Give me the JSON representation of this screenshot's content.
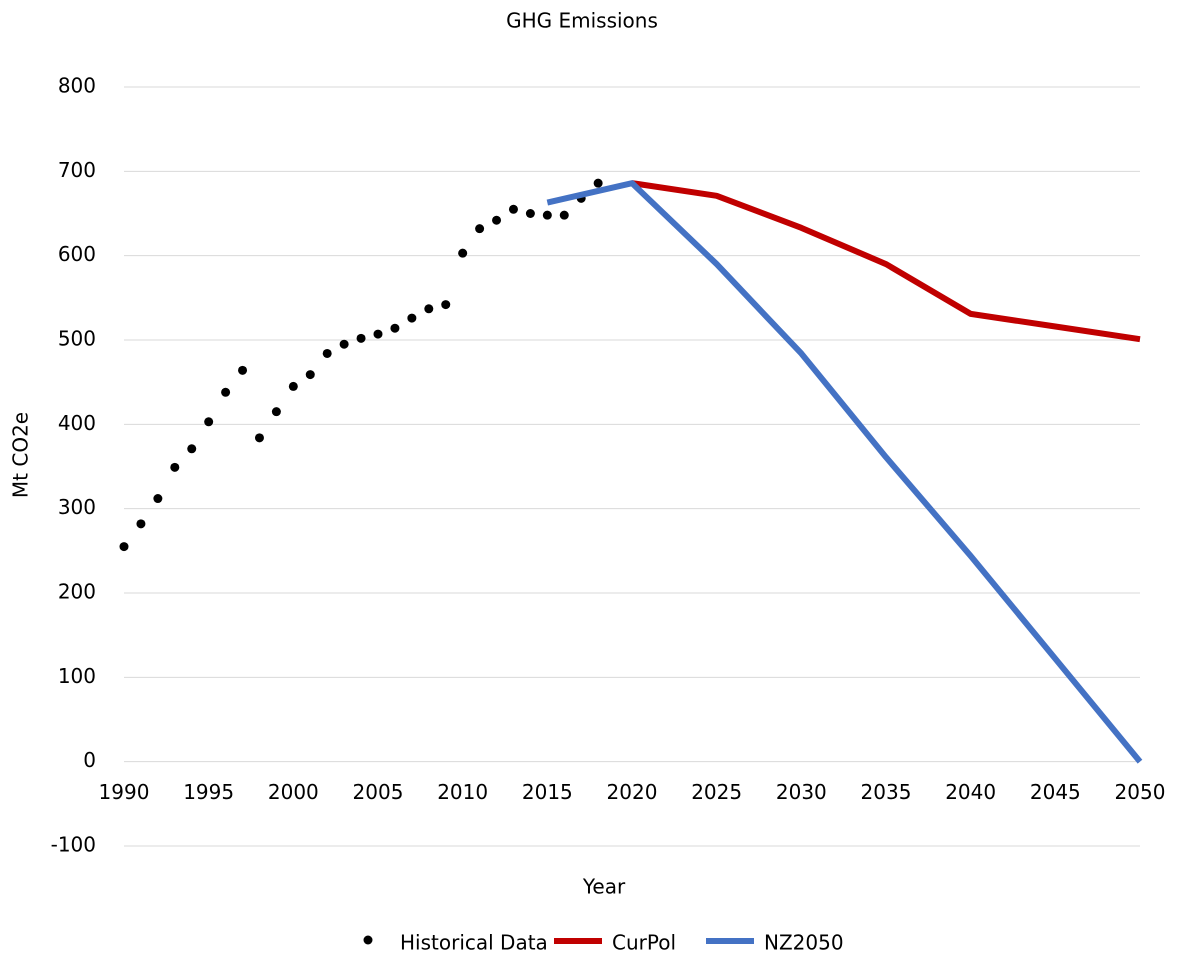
{
  "chart_data": {
    "type": "line",
    "title": "GHG Emissions",
    "x_label": "Year",
    "y_label": "Mt CO2e",
    "xlim": [
      1990,
      2050
    ],
    "xticks": [
      1990,
      1995,
      2000,
      2005,
      2010,
      2015,
      2020,
      2025,
      2030,
      2035,
      2040,
      2045,
      2050
    ],
    "ylim": [
      -100,
      800
    ],
    "yticks": [
      -100,
      0,
      100,
      200,
      300,
      400,
      500,
      600,
      700,
      800
    ],
    "grid": true,
    "legend": "bottom",
    "series": [
      {
        "name": "Historical Data",
        "color": "#000000",
        "kind": "scatter",
        "x": [
          1990,
          1991,
          1992,
          1993,
          1994,
          1995,
          1996,
          1997,
          1998,
          1999,
          2000,
          2001,
          2002,
          2003,
          2004,
          2005,
          2006,
          2007,
          2008,
          2009,
          2010,
          2011,
          2012,
          2013,
          2014,
          2015,
          2016,
          2017,
          2018
        ],
        "values": [
          255,
          282,
          312,
          349,
          371,
          403,
          438,
          464,
          384,
          415,
          445,
          459,
          484,
          495,
          502,
          507,
          514,
          526,
          537,
          542,
          603,
          632,
          642,
          655,
          650,
          648,
          648,
          668,
          686
        ]
      },
      {
        "name": "CurPol",
        "color": "#c00000",
        "kind": "line",
        "x": [
          2020,
          2025,
          2030,
          2035,
          2040,
          2045,
          2050
        ],
        "values": [
          686,
          671,
          633,
          590,
          531,
          516,
          501
        ]
      },
      {
        "name": "NZ2050",
        "color": "#4472c4",
        "kind": "line",
        "x": [
          2015,
          2020,
          2025,
          2030,
          2035,
          2040,
          2045,
          2050
        ],
        "values": [
          663,
          686,
          590,
          484,
          361,
          244,
          122,
          0
        ]
      }
    ]
  }
}
